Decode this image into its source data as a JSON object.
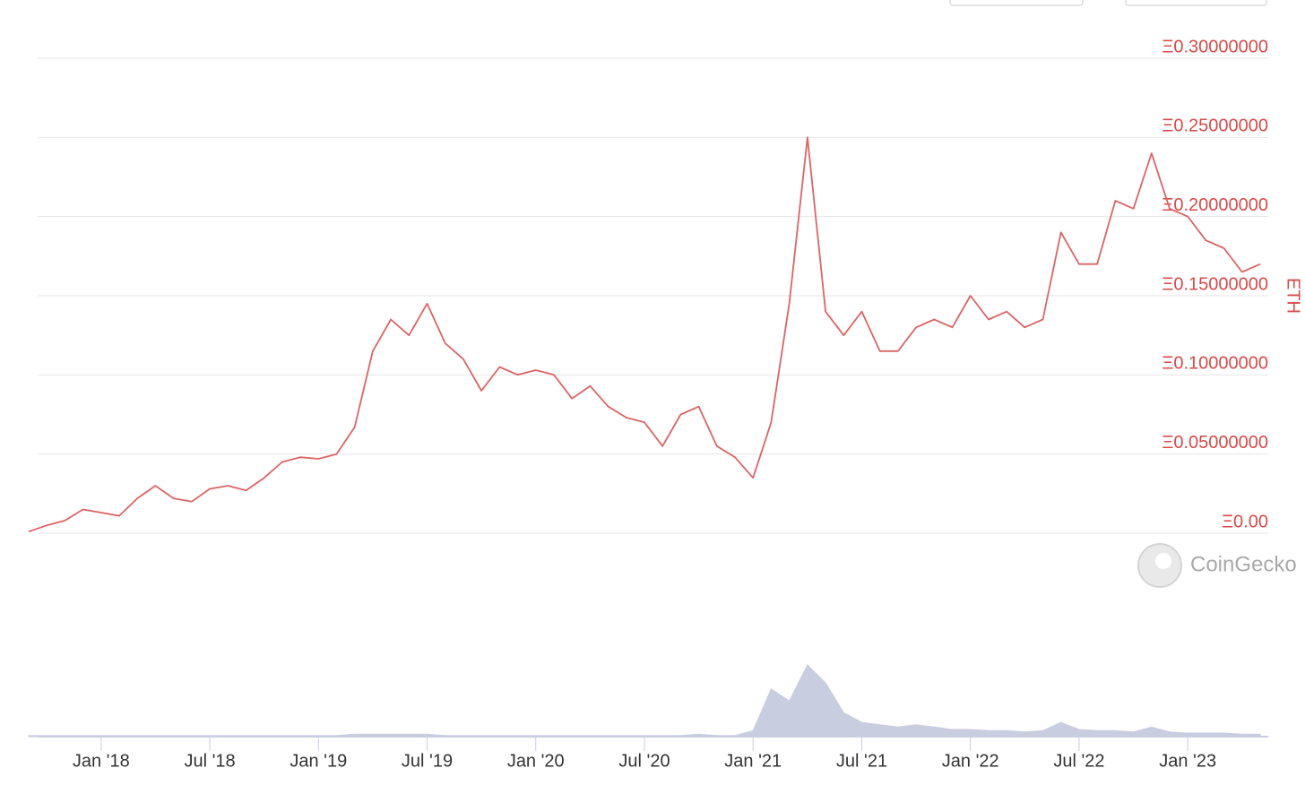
{
  "chart_data": {
    "type": "line",
    "y_label": "ETH",
    "watermark": "CoinGecko",
    "color": "#dc6464",
    "label_color": "#d94a4a",
    "grid": true,
    "x": [
      "2017-09",
      "2017-10",
      "2017-11",
      "2017-12",
      "2018-01",
      "2018-02",
      "2018-03",
      "2018-04",
      "2018-05",
      "2018-06",
      "2018-07",
      "2018-08",
      "2018-09",
      "2018-10",
      "2018-11",
      "2018-12",
      "2019-01",
      "2019-02",
      "2019-03",
      "2019-04",
      "2019-05",
      "2019-06",
      "2019-07",
      "2019-08",
      "2019-09",
      "2019-10",
      "2019-11",
      "2019-12",
      "2020-01",
      "2020-02",
      "2020-03",
      "2020-04",
      "2020-05",
      "2020-06",
      "2020-07",
      "2020-08",
      "2020-09",
      "2020-10",
      "2020-11",
      "2020-12",
      "2021-01",
      "2021-02",
      "2021-03",
      "2021-04",
      "2021-05",
      "2021-06",
      "2021-07",
      "2021-08",
      "2021-09",
      "2021-10",
      "2021-11",
      "2021-12",
      "2022-01",
      "2022-02",
      "2022-03",
      "2022-04",
      "2022-05",
      "2022-06",
      "2022-07",
      "2022-08",
      "2022-09",
      "2022-10",
      "2022-11",
      "2022-12",
      "2023-01",
      "2023-02",
      "2023-03",
      "2023-04",
      "2023-05"
    ],
    "values": [
      0.001,
      0.005,
      0.008,
      0.015,
      0.013,
      0.011,
      0.022,
      0.03,
      0.022,
      0.02,
      0.028,
      0.03,
      0.027,
      0.035,
      0.045,
      0.048,
      0.047,
      0.05,
      0.067,
      0.115,
      0.135,
      0.125,
      0.145,
      0.12,
      0.11,
      0.09,
      0.105,
      0.1,
      0.103,
      0.1,
      0.085,
      0.093,
      0.08,
      0.073,
      0.07,
      0.055,
      0.075,
      0.08,
      0.055,
      0.048,
      0.035,
      0.07,
      0.145,
      0.25,
      0.14,
      0.125,
      0.14,
      0.115,
      0.115,
      0.13,
      0.135,
      0.13,
      0.15,
      0.135,
      0.14,
      0.13,
      0.135,
      0.19,
      0.17,
      0.17,
      0.21,
      0.205,
      0.24,
      0.205,
      0.2,
      0.185,
      0.18,
      0.165,
      0.17
    ],
    "volume": {
      "color": "#c9cde0",
      "values": [
        1,
        1,
        1,
        1,
        1,
        1,
        1,
        1,
        1,
        1,
        1,
        1,
        1,
        1,
        1,
        1,
        1,
        1,
        2,
        2,
        2,
        2,
        2,
        1,
        1,
        1,
        1,
        1,
        1,
        1,
        1,
        1,
        1,
        1,
        1,
        1,
        1,
        2,
        1,
        1,
        5,
        40,
        30,
        60,
        45,
        20,
        12,
        10,
        8,
        10,
        8,
        6,
        6,
        5,
        5,
        4,
        5,
        12,
        6,
        5,
        5,
        4,
        8,
        4,
        3,
        3,
        3,
        2,
        2
      ]
    },
    "xlim": [
      "2017-09",
      "2023-05"
    ],
    "xticks": [
      {
        "value": "2018-01",
        "label": "Jan '18"
      },
      {
        "value": "2018-07",
        "label": "Jul '18"
      },
      {
        "value": "2019-01",
        "label": "Jan '19"
      },
      {
        "value": "2019-07",
        "label": "Jul '19"
      },
      {
        "value": "2020-01",
        "label": "Jan '20"
      },
      {
        "value": "2020-07",
        "label": "Jul '20"
      },
      {
        "value": "2021-01",
        "label": "Jan '21"
      },
      {
        "value": "2021-07",
        "label": "Jul '21"
      },
      {
        "value": "2022-01",
        "label": "Jan '22"
      },
      {
        "value": "2022-07",
        "label": "Jul '22"
      },
      {
        "value": "2023-01",
        "label": "Jan '23"
      }
    ],
    "ylim": [
      0,
      0.3
    ],
    "yticks": [
      {
        "value": 0,
        "label": "Ξ0.00"
      },
      {
        "value": 0.05,
        "label": "Ξ0.05000000"
      },
      {
        "value": 0.1,
        "label": "Ξ0.10000000"
      },
      {
        "value": 0.15,
        "label": "Ξ0.15000000"
      },
      {
        "value": 0.2,
        "label": "Ξ0.20000000"
      },
      {
        "value": 0.25,
        "label": "Ξ0.25000000"
      },
      {
        "value": 0.3,
        "label": "Ξ0.30000000"
      }
    ]
  }
}
